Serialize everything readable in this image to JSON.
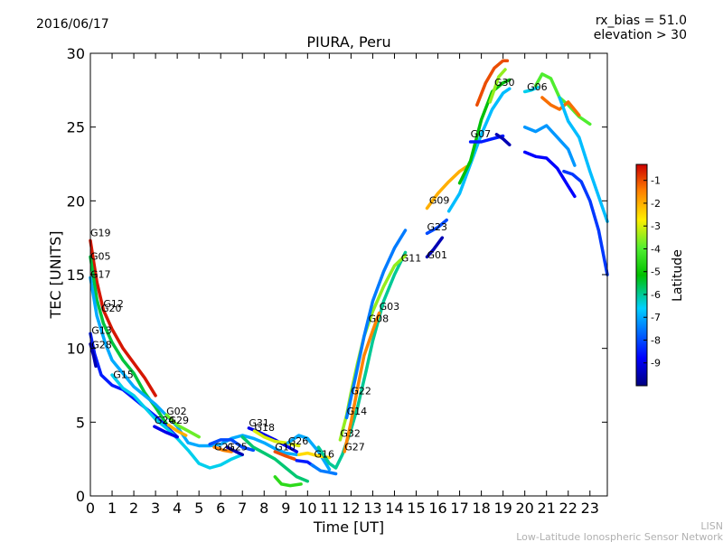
{
  "header": {
    "date": "2016/06/17",
    "rx_bias": "rx_bias = 51.0",
    "elevation": "elevation > 30"
  },
  "footer": {
    "line1": "LISN",
    "line2": "Low-Latitude Ionospheric Sensor Network"
  },
  "chart_data": {
    "type": "scatter",
    "title": "PIURA, Peru",
    "xlabel": "Time [UT]",
    "ylabel": "TEC [UNITS]",
    "xlim": [
      0,
      23.8
    ],
    "ylim": [
      0,
      30
    ],
    "x_ticks": [
      "0",
      "1",
      "2",
      "3",
      "4",
      "5",
      "6",
      "7",
      "8",
      "9",
      "10",
      "11",
      "12",
      "13",
      "14",
      "15",
      "16",
      "17",
      "18",
      "19",
      "20",
      "21",
      "22",
      "23"
    ],
    "y_ticks": [
      "0",
      "5",
      "10",
      "15",
      "20",
      "25",
      "30"
    ],
    "grid": false,
    "colorbar": {
      "label": "Latitude",
      "range": [
        -10,
        -0.3
      ],
      "ticks": [
        "-1",
        "-2",
        "-3",
        "-4",
        "-5",
        "-6",
        "-7",
        "-8",
        "-9"
      ]
    },
    "satellite_labels": [
      {
        "name": "G19",
        "x": 0.0,
        "y": 17.6
      },
      {
        "name": "G05",
        "x": 0.0,
        "y": 16.0
      },
      {
        "name": "G17",
        "x": 0.0,
        "y": 14.8
      },
      {
        "name": "G12",
        "x": 0.6,
        "y": 12.8
      },
      {
        "name": "G20",
        "x": 0.5,
        "y": 12.5
      },
      {
        "name": "G13",
        "x": 0.05,
        "y": 11.0
      },
      {
        "name": "G28",
        "x": 0.05,
        "y": 10.0
      },
      {
        "name": "G15",
        "x": 1.05,
        "y": 8.0
      },
      {
        "name": "G02",
        "x": 3.5,
        "y": 5.5
      },
      {
        "name": "G24",
        "x": 2.95,
        "y": 4.9
      },
      {
        "name": "G29",
        "x": 3.6,
        "y": 4.9
      },
      {
        "name": "G21",
        "x": 5.7,
        "y": 3.1
      },
      {
        "name": "G25",
        "x": 6.3,
        "y": 3.1
      },
      {
        "name": "G31",
        "x": 7.3,
        "y": 4.7
      },
      {
        "name": "G18",
        "x": 7.55,
        "y": 4.4
      },
      {
        "name": "G10",
        "x": 8.5,
        "y": 3.1
      },
      {
        "name": "G26",
        "x": 9.1,
        "y": 3.5
      },
      {
        "name": "G16",
        "x": 10.3,
        "y": 2.6
      },
      {
        "name": "G32",
        "x": 11.5,
        "y": 4.0
      },
      {
        "name": "G27",
        "x": 11.7,
        "y": 3.1
      },
      {
        "name": "G22",
        "x": 12.0,
        "y": 6.9
      },
      {
        "name": "G14",
        "x": 11.8,
        "y": 5.5
      },
      {
        "name": "G08",
        "x": 12.8,
        "y": 11.8
      },
      {
        "name": "G03",
        "x": 13.3,
        "y": 12.6
      },
      {
        "name": "G11",
        "x": 14.3,
        "y": 15.9
      },
      {
        "name": "G01",
        "x": 15.5,
        "y": 16.1
      },
      {
        "name": "G23",
        "x": 15.5,
        "y": 18.0
      },
      {
        "name": "G09",
        "x": 15.6,
        "y": 19.8
      },
      {
        "name": "G07",
        "x": 17.5,
        "y": 24.3
      },
      {
        "name": "G30",
        "x": 18.6,
        "y": 27.8
      },
      {
        "name": "G06",
        "x": 20.1,
        "y": 27.5
      }
    ],
    "series": [
      {
        "lat": -0.5,
        "points": [
          [
            0,
            17.3
          ],
          [
            0.3,
            14.5
          ],
          [
            0.6,
            12.6
          ],
          [
            1.0,
            11.3
          ],
          [
            1.5,
            10.0
          ],
          [
            2.0,
            9.0
          ],
          [
            2.5,
            8.0
          ],
          [
            3.0,
            6.8
          ]
        ]
      },
      {
        "lat": -5.5,
        "points": [
          [
            0,
            16.2
          ],
          [
            0.3,
            13.3
          ],
          [
            0.6,
            11.7
          ],
          [
            1.0,
            10.4
          ],
          [
            1.5,
            9.2
          ],
          [
            2.0,
            8.3
          ],
          [
            2.5,
            7.0
          ],
          [
            3.0,
            6.0
          ],
          [
            3.5,
            4.9
          ]
        ]
      },
      {
        "lat": -7.0,
        "points": [
          [
            0,
            14.8
          ],
          [
            0.3,
            12.2
          ],
          [
            0.7,
            10.3
          ],
          [
            1.0,
            9.2
          ],
          [
            1.5,
            8.3
          ],
          [
            2.0,
            7.4
          ],
          [
            3.0,
            6.2
          ],
          [
            4.0,
            4.7
          ],
          [
            4.5,
            3.6
          ],
          [
            5.0,
            3.4
          ],
          [
            5.5,
            3.4
          ],
          [
            6.0,
            3.5
          ],
          [
            6.5,
            3.9
          ],
          [
            7.0,
            4.1
          ],
          [
            7.5,
            3.9
          ],
          [
            8.0,
            3.6
          ],
          [
            8.5,
            3.2
          ],
          [
            9.0,
            2.9
          ],
          [
            9.5,
            2.8
          ]
        ]
      },
      {
        "lat": -8.5,
        "points": [
          [
            0,
            11.0
          ],
          [
            0.2,
            9.6
          ],
          [
            0.5,
            8.2
          ],
          [
            1.0,
            7.5
          ],
          [
            1.5,
            7.2
          ],
          [
            2.0,
            6.6
          ],
          [
            3.0,
            5.4
          ],
          [
            3.5,
            4.7
          ],
          [
            4.0,
            4.0
          ]
        ]
      },
      {
        "lat": -9.5,
        "points": [
          [
            0,
            10.3
          ],
          [
            0.15,
            9.5
          ],
          [
            0.25,
            8.8
          ]
        ]
      },
      {
        "lat": -6.5,
        "points": [
          [
            1.0,
            8.2
          ],
          [
            1.5,
            7.3
          ],
          [
            2.0,
            6.8
          ],
          [
            2.5,
            6.0
          ],
          [
            3.0,
            5.2
          ],
          [
            3.5,
            4.6
          ],
          [
            4.0,
            3.9
          ],
          [
            4.5,
            3.1
          ],
          [
            5.0,
            2.2
          ],
          [
            5.5,
            1.9
          ],
          [
            6.0,
            2.1
          ],
          [
            6.5,
            2.5
          ],
          [
            7.0,
            2.8
          ]
        ]
      },
      {
        "lat": -3.8,
        "points": [
          [
            3.5,
            5.5
          ],
          [
            4.0,
            4.8
          ],
          [
            4.5,
            4.4
          ],
          [
            5.0,
            4.0
          ]
        ]
      },
      {
        "lat": -9.0,
        "points": [
          [
            2.95,
            4.7
          ],
          [
            3.5,
            4.3
          ],
          [
            4.0,
            4.0
          ]
        ]
      },
      {
        "lat": -2.0,
        "points": [
          [
            3.6,
            4.8
          ],
          [
            4.0,
            4.4
          ],
          [
            4.4,
            4.1
          ]
        ]
      },
      {
        "lat": -1.5,
        "points": [
          [
            5.7,
            3.3
          ],
          [
            6.1,
            3.1
          ],
          [
            6.5,
            3.0
          ]
        ]
      },
      {
        "lat": -9.5,
        "points": [
          [
            6.3,
            3.3
          ],
          [
            6.7,
            3.0
          ],
          [
            7.0,
            2.8
          ]
        ]
      },
      {
        "lat": -8.0,
        "points": [
          [
            5.5,
            3.5
          ],
          [
            6.0,
            3.8
          ],
          [
            6.5,
            3.8
          ],
          [
            7.0,
            3.3
          ],
          [
            7.5,
            3.1
          ]
        ]
      },
      {
        "lat": -9.0,
        "points": [
          [
            7.3,
            4.6
          ],
          [
            7.8,
            4.3
          ],
          [
            8.5,
            3.8
          ],
          [
            9.0,
            3.4
          ],
          [
            9.5,
            3.0
          ]
        ]
      },
      {
        "lat": -3.0,
        "points": [
          [
            7.55,
            4.4
          ],
          [
            8.0,
            4.0
          ],
          [
            8.5,
            3.7
          ],
          [
            9.0,
            3.6
          ],
          [
            9.6,
            3.4
          ]
        ]
      },
      {
        "lat": -5.8,
        "points": [
          [
            7.0,
            4.0
          ],
          [
            7.5,
            3.3
          ],
          [
            8.0,
            2.9
          ],
          [
            8.5,
            2.5
          ],
          [
            9.0,
            1.9
          ],
          [
            9.5,
            1.3
          ],
          [
            10.0,
            1.0
          ]
        ]
      },
      {
        "lat": -1.0,
        "points": [
          [
            8.5,
            3.0
          ],
          [
            9.0,
            2.7
          ],
          [
            9.4,
            2.5
          ]
        ]
      },
      {
        "lat": -4.5,
        "points": [
          [
            8.5,
            1.3
          ],
          [
            8.8,
            0.8
          ],
          [
            9.2,
            0.7
          ],
          [
            9.7,
            0.8
          ]
        ]
      },
      {
        "lat": -7.0,
        "points": [
          [
            9.1,
            3.6
          ],
          [
            9.6,
            4.1
          ],
          [
            10.0,
            3.9
          ],
          [
            10.5,
            3.0
          ],
          [
            11.0,
            1.8
          ]
        ]
      },
      {
        "lat": -2.5,
        "points": [
          [
            9.6,
            2.8
          ],
          [
            10.0,
            2.9
          ],
          [
            10.5,
            2.7
          ],
          [
            11.0,
            2.6
          ]
        ]
      },
      {
        "lat": -8.5,
        "points": [
          [
            9.5,
            2.4
          ],
          [
            10.0,
            2.3
          ],
          [
            10.3,
            2.0
          ]
        ]
      },
      {
        "lat": -7.5,
        "points": [
          [
            10.2,
            2.1
          ],
          [
            10.6,
            1.7
          ],
          [
            11.0,
            1.6
          ],
          [
            11.3,
            1.5
          ]
        ]
      },
      {
        "lat": -6.0,
        "points": [
          [
            10.5,
            3.3
          ],
          [
            11.0,
            2.2
          ],
          [
            11.3,
            1.9
          ],
          [
            11.6,
            2.8
          ],
          [
            12.0,
            4.5
          ],
          [
            12.3,
            6.0
          ],
          [
            12.7,
            8.5
          ],
          [
            13.0,
            10.5
          ],
          [
            13.5,
            13.2
          ],
          [
            14.0,
            15.0
          ],
          [
            14.5,
            16.5
          ]
        ]
      },
      {
        "lat": -3.5,
        "points": [
          [
            11.5,
            3.8
          ],
          [
            11.8,
            5.5
          ],
          [
            12.0,
            7.0
          ],
          [
            12.3,
            9.0
          ],
          [
            12.6,
            10.8
          ],
          [
            13.0,
            12.5
          ],
          [
            13.5,
            14.2
          ],
          [
            14.0,
            15.6
          ],
          [
            14.5,
            16.3
          ]
        ]
      },
      {
        "lat": -1.5,
        "points": [
          [
            11.7,
            3.0
          ],
          [
            12.0,
            5.0
          ],
          [
            12.3,
            7.3
          ],
          [
            12.6,
            9.5
          ],
          [
            13.0,
            11.2
          ],
          [
            13.3,
            12.4
          ]
        ]
      },
      {
        "lat": -7.5,
        "points": [
          [
            11.8,
            5.3
          ],
          [
            12.2,
            8.0
          ],
          [
            12.6,
            10.8
          ],
          [
            13.0,
            13.2
          ],
          [
            13.5,
            15.2
          ],
          [
            14.0,
            16.8
          ],
          [
            14.5,
            18.0
          ]
        ]
      },
      {
        "lat": -9.5,
        "points": [
          [
            15.5,
            16.2
          ],
          [
            15.8,
            16.7
          ],
          [
            16.2,
            17.5
          ]
        ]
      },
      {
        "lat": -8.0,
        "points": [
          [
            15.5,
            17.8
          ],
          [
            16.0,
            18.2
          ],
          [
            16.4,
            18.7
          ]
        ]
      },
      {
        "lat": -2.0,
        "points": [
          [
            15.5,
            19.5
          ],
          [
            16.0,
            20.5
          ],
          [
            16.5,
            21.3
          ],
          [
            17.0,
            22.0
          ],
          [
            17.3,
            22.3
          ]
        ]
      },
      {
        "lat": -6.8,
        "points": [
          [
            16.5,
            19.3
          ],
          [
            17.0,
            20.5
          ],
          [
            17.5,
            22.5
          ],
          [
            18.0,
            24.5
          ],
          [
            18.5,
            26.2
          ],
          [
            19.0,
            27.3
          ],
          [
            19.3,
            27.6
          ]
        ]
      },
      {
        "lat": -5.2,
        "points": [
          [
            17.0,
            21.2
          ],
          [
            17.5,
            22.7
          ],
          [
            18.0,
            25.5
          ],
          [
            18.5,
            27.4
          ],
          [
            19.0,
            28.0
          ],
          [
            19.3,
            28.2
          ]
        ]
      },
      {
        "lat": -1.0,
        "points": [
          [
            17.8,
            26.5
          ],
          [
            18.2,
            28.0
          ],
          [
            18.6,
            29.0
          ],
          [
            19.0,
            29.5
          ],
          [
            19.2,
            29.5
          ]
        ]
      },
      {
        "lat": -3.5,
        "points": [
          [
            18.4,
            26.7
          ],
          [
            18.8,
            28.4
          ],
          [
            19.1,
            28.9
          ]
        ]
      },
      {
        "lat": -8.5,
        "points": [
          [
            17.5,
            24.0
          ],
          [
            18.0,
            24.0
          ],
          [
            18.5,
            24.2
          ],
          [
            19.0,
            24.4
          ]
        ]
      },
      {
        "lat": -9.5,
        "points": [
          [
            18.7,
            24.5
          ],
          [
            19.0,
            24.2
          ],
          [
            19.3,
            23.8
          ]
        ]
      },
      {
        "lat": -6.5,
        "points": [
          [
            20.0,
            27.4
          ],
          [
            20.3,
            27.5
          ],
          [
            20.6,
            27.7
          ]
        ]
      },
      {
        "lat": -4.0,
        "points": [
          [
            20.5,
            27.8
          ],
          [
            20.8,
            28.6
          ],
          [
            21.2,
            28.3
          ],
          [
            21.6,
            27.0
          ],
          [
            22.0,
            26.5
          ],
          [
            22.5,
            25.7
          ],
          [
            23.0,
            25.2
          ]
        ]
      },
      {
        "lat": -1.3,
        "points": [
          [
            20.8,
            27.0
          ],
          [
            21.2,
            26.5
          ],
          [
            21.6,
            26.2
          ],
          [
            22.0,
            26.7
          ],
          [
            22.5,
            25.8
          ]
        ]
      },
      {
        "lat": -6.8,
        "points": [
          [
            21.6,
            27.0
          ],
          [
            22.0,
            25.4
          ],
          [
            22.5,
            24.3
          ],
          [
            23.0,
            22.0
          ],
          [
            23.4,
            20.3
          ],
          [
            23.8,
            18.6
          ]
        ]
      },
      {
        "lat": -8.2,
        "points": [
          [
            21.8,
            22.0
          ],
          [
            22.2,
            21.8
          ],
          [
            22.6,
            21.3
          ],
          [
            23.0,
            20.0
          ],
          [
            23.4,
            18.0
          ],
          [
            23.8,
            15.0
          ]
        ]
      },
      {
        "lat": -7.2,
        "points": [
          [
            20.0,
            25.0
          ],
          [
            20.5,
            24.7
          ],
          [
            21.0,
            25.1
          ],
          [
            21.5,
            24.3
          ],
          [
            22.0,
            23.5
          ],
          [
            22.3,
            22.4
          ]
        ]
      },
      {
        "lat": -8.8,
        "points": [
          [
            20.0,
            23.3
          ],
          [
            20.5,
            23.0
          ],
          [
            21.0,
            22.9
          ],
          [
            21.5,
            22.2
          ],
          [
            22.0,
            21.0
          ],
          [
            22.3,
            20.3
          ]
        ]
      }
    ]
  }
}
